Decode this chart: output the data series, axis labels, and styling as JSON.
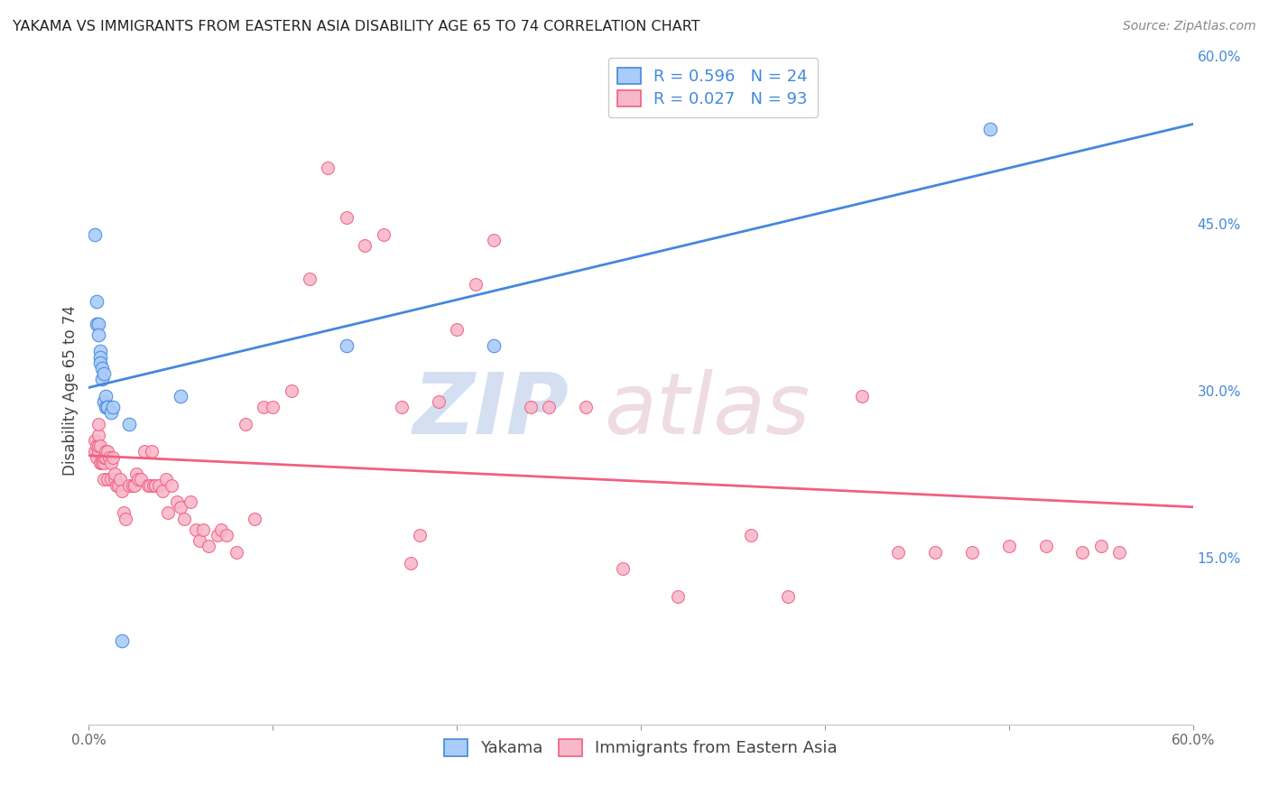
{
  "title": "YAKAMA VS IMMIGRANTS FROM EASTERN ASIA DISABILITY AGE 65 TO 74 CORRELATION CHART",
  "source": "Source: ZipAtlas.com",
  "ylabel": "Disability Age 65 to 74",
  "xlim": [
    0.0,
    0.6
  ],
  "ylim": [
    0.0,
    0.6
  ],
  "legend_labels": [
    "Yakama",
    "Immigrants from Eastern Asia"
  ],
  "series1_r": "0.596",
  "series1_n": "24",
  "series2_r": "0.027",
  "series2_n": "93",
  "series1_color": "#aaccf8",
  "series2_color": "#f8b8cb",
  "series1_line_color": "#4488dd",
  "series2_line_color": "#f06080",
  "legend_text_color": "#4488dd",
  "background_color": "#ffffff",
  "grid_color": "#dddddd",
  "yakama_x": [
    0.003,
    0.004,
    0.004,
    0.005,
    0.005,
    0.006,
    0.006,
    0.006,
    0.007,
    0.007,
    0.008,
    0.008,
    0.009,
    0.009,
    0.01,
    0.01,
    0.012,
    0.013,
    0.018,
    0.022,
    0.05,
    0.14,
    0.22,
    0.49
  ],
  "yakama_y": [
    0.44,
    0.38,
    0.36,
    0.36,
    0.35,
    0.335,
    0.33,
    0.325,
    0.32,
    0.31,
    0.315,
    0.29,
    0.285,
    0.295,
    0.285,
    0.285,
    0.28,
    0.285,
    0.075,
    0.27,
    0.295,
    0.34,
    0.34,
    0.535
  ],
  "eastern_x": [
    0.003,
    0.003,
    0.004,
    0.004,
    0.005,
    0.005,
    0.005,
    0.005,
    0.006,
    0.006,
    0.007,
    0.007,
    0.008,
    0.008,
    0.008,
    0.009,
    0.009,
    0.01,
    0.01,
    0.011,
    0.012,
    0.012,
    0.013,
    0.014,
    0.014,
    0.015,
    0.016,
    0.017,
    0.018,
    0.019,
    0.02,
    0.022,
    0.024,
    0.025,
    0.026,
    0.027,
    0.028,
    0.03,
    0.032,
    0.033,
    0.034,
    0.035,
    0.036,
    0.038,
    0.04,
    0.042,
    0.043,
    0.045,
    0.048,
    0.05,
    0.052,
    0.055,
    0.058,
    0.06,
    0.062,
    0.065,
    0.07,
    0.072,
    0.075,
    0.08,
    0.085,
    0.09,
    0.095,
    0.1,
    0.11,
    0.12,
    0.13,
    0.14,
    0.15,
    0.16,
    0.17,
    0.175,
    0.18,
    0.19,
    0.2,
    0.21,
    0.22,
    0.24,
    0.25,
    0.27,
    0.29,
    0.32,
    0.36,
    0.38,
    0.42,
    0.44,
    0.46,
    0.48,
    0.5,
    0.52,
    0.54,
    0.55,
    0.56
  ],
  "eastern_y": [
    0.245,
    0.255,
    0.24,
    0.25,
    0.245,
    0.25,
    0.26,
    0.27,
    0.235,
    0.25,
    0.235,
    0.235,
    0.22,
    0.235,
    0.24,
    0.24,
    0.245,
    0.245,
    0.22,
    0.24,
    0.22,
    0.235,
    0.24,
    0.22,
    0.225,
    0.215,
    0.215,
    0.22,
    0.21,
    0.19,
    0.185,
    0.215,
    0.215,
    0.215,
    0.225,
    0.22,
    0.22,
    0.245,
    0.215,
    0.215,
    0.245,
    0.215,
    0.215,
    0.215,
    0.21,
    0.22,
    0.19,
    0.215,
    0.2,
    0.195,
    0.185,
    0.2,
    0.175,
    0.165,
    0.175,
    0.16,
    0.17,
    0.175,
    0.17,
    0.155,
    0.27,
    0.185,
    0.285,
    0.285,
    0.3,
    0.4,
    0.5,
    0.455,
    0.43,
    0.44,
    0.285,
    0.145,
    0.17,
    0.29,
    0.355,
    0.395,
    0.435,
    0.285,
    0.285,
    0.285,
    0.14,
    0.115,
    0.17,
    0.115,
    0.295,
    0.155,
    0.155,
    0.155,
    0.16,
    0.16,
    0.155,
    0.16,
    0.155
  ]
}
